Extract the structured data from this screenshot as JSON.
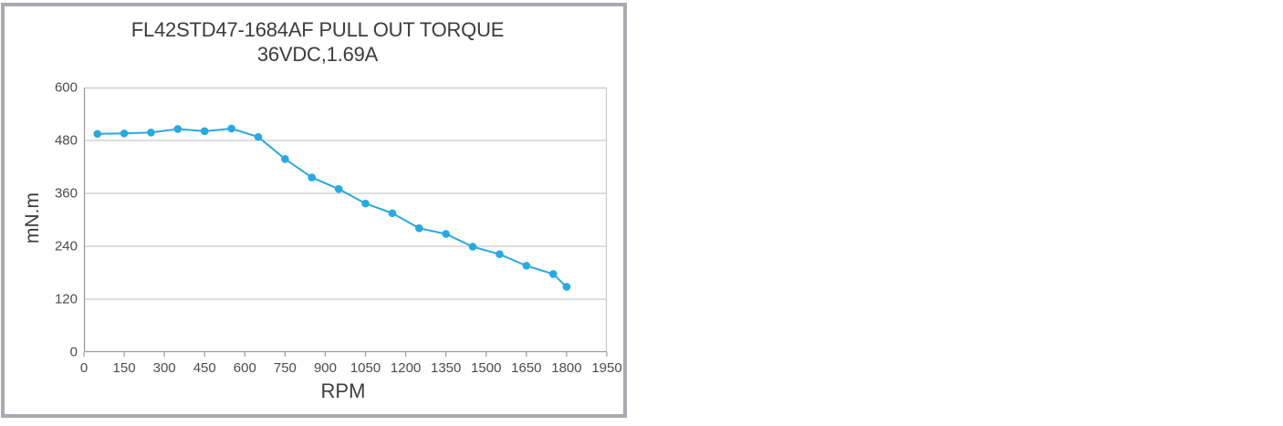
{
  "panel": {
    "border_color": "#a9a9b0",
    "background": "#ffffff"
  },
  "chart_data": {
    "type": "line",
    "title": "FL42STD47-1684AF PULL OUT TORQUE",
    "subtitle": "36VDC,1.69A",
    "xlabel": "RPM",
    "ylabel": "mN.m",
    "series": [
      {
        "name": "pull-out-torque",
        "x": [
          50,
          150,
          250,
          350,
          450,
          550,
          650,
          750,
          850,
          950,
          1050,
          1150,
          1250,
          1350,
          1450,
          1550,
          1650,
          1750,
          1800
        ],
        "values": [
          495,
          496,
          498,
          506,
          501,
          507,
          488,
          438,
          396,
          370,
          337,
          315,
          281,
          268,
          239,
          222,
          196,
          177,
          148
        ]
      }
    ],
    "xlim": [
      0,
      1950
    ],
    "ylim": [
      0,
      600
    ],
    "x_ticks": [
      0,
      150,
      300,
      450,
      600,
      750,
      900,
      1050,
      1200,
      1350,
      1500,
      1650,
      1800,
      1950
    ],
    "y_ticks": [
      0,
      120,
      240,
      360,
      480,
      600
    ],
    "grid": "horizontal major gridlines only",
    "legend": "none",
    "line_color": "#29a9e1",
    "marker": "circle",
    "marker_radius": 4.3,
    "grid_color": "#c9c9c9",
    "axis_color": "#9d9d9d",
    "tick_len": 5
  }
}
